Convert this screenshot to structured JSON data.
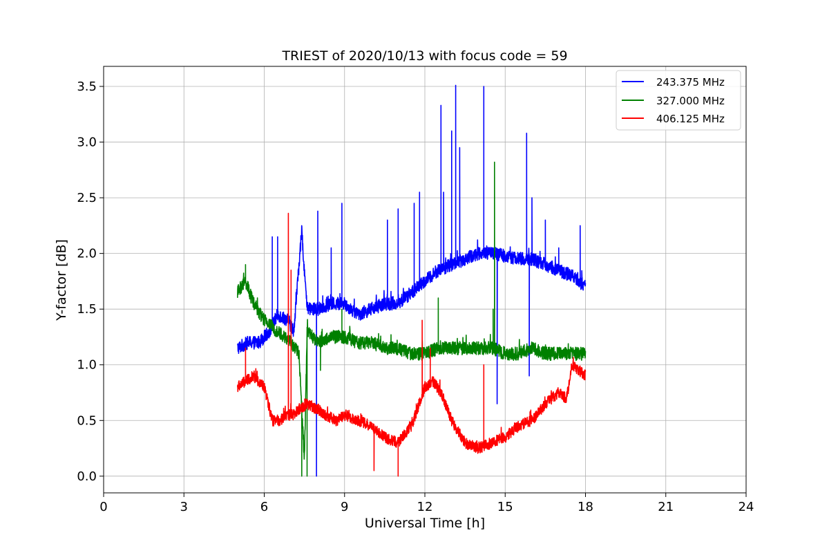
{
  "chart_data": {
    "type": "line",
    "title": "TRIEST of 2020/10/13 with focus code = 59",
    "xlabel": "Universal Time [h]",
    "ylabel": "Y-factor [dB]",
    "xlim": [
      0,
      24
    ],
    "ylim": [
      -0.15,
      3.68
    ],
    "xticks": [
      0,
      3,
      6,
      9,
      12,
      15,
      18,
      21,
      24
    ],
    "yticks": [
      0.0,
      0.5,
      1.0,
      1.5,
      2.0,
      2.5,
      3.0,
      3.5
    ],
    "ytick_labels": [
      "0.0",
      "0.5",
      "1.0",
      "1.5",
      "2.0",
      "2.5",
      "3.0",
      "3.5"
    ],
    "grid": true,
    "legend_position": "top-right",
    "series": [
      {
        "name": "243.375 MHz",
        "color": "#0000ff",
        "noise": 0.06,
        "points": [
          [
            5.0,
            1.15
          ],
          [
            5.4,
            1.2
          ],
          [
            5.8,
            1.2
          ],
          [
            6.2,
            1.3
          ],
          [
            6.5,
            1.45
          ],
          [
            6.9,
            1.4
          ],
          [
            7.1,
            1.3
          ],
          [
            7.4,
            2.2
          ],
          [
            7.6,
            1.5
          ],
          [
            8.0,
            1.5
          ],
          [
            8.5,
            1.55
          ],
          [
            9.0,
            1.55
          ],
          [
            9.5,
            1.45
          ],
          [
            10.0,
            1.5
          ],
          [
            10.5,
            1.55
          ],
          [
            11.0,
            1.55
          ],
          [
            11.5,
            1.65
          ],
          [
            12.0,
            1.75
          ],
          [
            12.5,
            1.85
          ],
          [
            13.0,
            1.9
          ],
          [
            13.5,
            1.95
          ],
          [
            14.0,
            2.0
          ],
          [
            14.5,
            2.0
          ],
          [
            15.0,
            1.98
          ],
          [
            15.5,
            1.95
          ],
          [
            16.0,
            1.95
          ],
          [
            16.5,
            1.9
          ],
          [
            17.0,
            1.85
          ],
          [
            17.5,
            1.8
          ],
          [
            18.0,
            1.7
          ]
        ],
        "spikes": [
          [
            6.3,
            2.15
          ],
          [
            6.5,
            2.15
          ],
          [
            7.95,
            0.0
          ],
          [
            8.0,
            2.38
          ],
          [
            8.5,
            2.05
          ],
          [
            8.9,
            2.45
          ],
          [
            10.6,
            2.3
          ],
          [
            11.0,
            2.4
          ],
          [
            11.6,
            2.45
          ],
          [
            11.8,
            2.55
          ],
          [
            12.6,
            3.33
          ],
          [
            12.7,
            2.55
          ],
          [
            13.0,
            3.1
          ],
          [
            13.15,
            3.51
          ],
          [
            13.3,
            2.95
          ],
          [
            14.2,
            3.5
          ],
          [
            14.7,
            0.65
          ],
          [
            15.8,
            3.08
          ],
          [
            15.9,
            0.9
          ],
          [
            16.0,
            2.5
          ],
          [
            16.5,
            2.3
          ],
          [
            17.0,
            2.05
          ],
          [
            17.8,
            2.25
          ]
        ]
      },
      {
        "name": "327.000 MHz",
        "color": "#008000",
        "noise": 0.06,
        "points": [
          [
            5.0,
            1.65
          ],
          [
            5.3,
            1.75
          ],
          [
            5.6,
            1.55
          ],
          [
            6.0,
            1.4
          ],
          [
            6.5,
            1.3
          ],
          [
            7.0,
            1.2
          ],
          [
            7.3,
            1.1
          ],
          [
            7.5,
            0.15
          ],
          [
            7.6,
            1.3
          ],
          [
            8.0,
            1.2
          ],
          [
            8.5,
            1.25
          ],
          [
            9.0,
            1.25
          ],
          [
            9.5,
            1.2
          ],
          [
            10.0,
            1.2
          ],
          [
            10.5,
            1.15
          ],
          [
            11.0,
            1.15
          ],
          [
            11.5,
            1.1
          ],
          [
            12.0,
            1.1
          ],
          [
            12.5,
            1.15
          ],
          [
            13.0,
            1.15
          ],
          [
            13.5,
            1.15
          ],
          [
            14.0,
            1.15
          ],
          [
            14.5,
            1.15
          ],
          [
            15.0,
            1.1
          ],
          [
            15.5,
            1.1
          ],
          [
            16.0,
            1.15
          ],
          [
            16.5,
            1.1
          ],
          [
            17.0,
            1.1
          ],
          [
            17.5,
            1.1
          ],
          [
            18.0,
            1.1
          ]
        ],
        "spikes": [
          [
            5.3,
            1.9
          ],
          [
            7.4,
            0.0
          ],
          [
            7.6,
            0.0
          ],
          [
            8.1,
            0.95
          ],
          [
            8.9,
            1.5
          ],
          [
            12.5,
            1.6
          ],
          [
            14.55,
            1.5
          ],
          [
            14.6,
            2.82
          ]
        ]
      },
      {
        "name": "406.125 MHz",
        "color": "#ff0000",
        "noise": 0.05,
        "points": [
          [
            5.0,
            0.8
          ],
          [
            5.3,
            0.85
          ],
          [
            5.6,
            0.9
          ],
          [
            6.0,
            0.8
          ],
          [
            6.3,
            0.5
          ],
          [
            6.6,
            0.5
          ],
          [
            6.8,
            0.55
          ],
          [
            7.1,
            0.55
          ],
          [
            7.3,
            0.6
          ],
          [
            7.6,
            0.65
          ],
          [
            8.0,
            0.6
          ],
          [
            8.3,
            0.55
          ],
          [
            8.7,
            0.5
          ],
          [
            9.0,
            0.55
          ],
          [
            9.5,
            0.5
          ],
          [
            10.0,
            0.45
          ],
          [
            10.5,
            0.35
          ],
          [
            11.0,
            0.3
          ],
          [
            11.5,
            0.45
          ],
          [
            12.0,
            0.8
          ],
          [
            12.3,
            0.85
          ],
          [
            12.6,
            0.75
          ],
          [
            13.0,
            0.5
          ],
          [
            13.5,
            0.3
          ],
          [
            14.0,
            0.25
          ],
          [
            14.5,
            0.3
          ],
          [
            15.0,
            0.35
          ],
          [
            15.5,
            0.45
          ],
          [
            16.0,
            0.5
          ],
          [
            16.5,
            0.65
          ],
          [
            17.0,
            0.75
          ],
          [
            17.3,
            0.7
          ],
          [
            17.5,
            1.0
          ],
          [
            18.0,
            0.9
          ]
        ],
        "spikes": [
          [
            5.3,
            1.15
          ],
          [
            6.9,
            2.36
          ],
          [
            7.0,
            1.85
          ],
          [
            10.1,
            0.05
          ],
          [
            11.0,
            0.0
          ],
          [
            11.9,
            1.4
          ],
          [
            12.2,
            1.15
          ],
          [
            14.2,
            1.0
          ]
        ]
      }
    ]
  }
}
